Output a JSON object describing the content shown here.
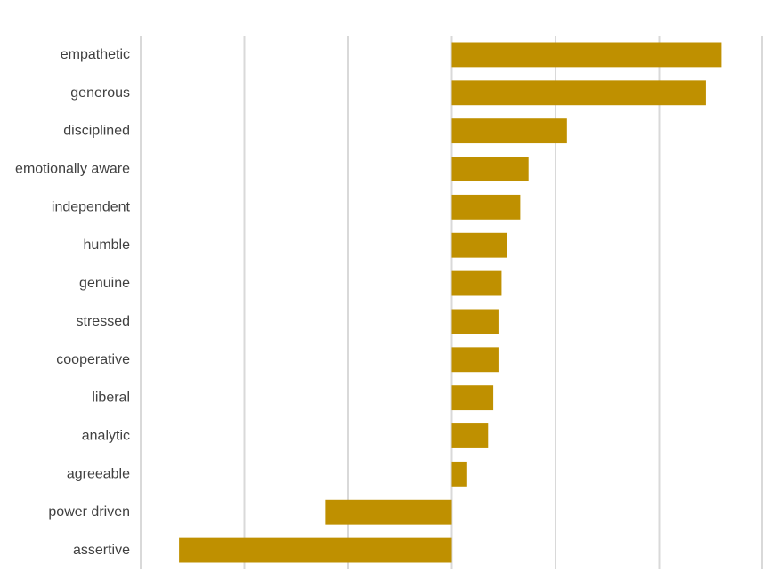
{
  "chart_data": {
    "type": "bar",
    "orientation": "horizontal",
    "categories": [
      "empathetic",
      "generous",
      "disciplined",
      "emotionally aware",
      "independent",
      "humble",
      "genuine",
      "stressed",
      "cooperative",
      "liberal",
      "analytic",
      "agreeable",
      "power driven",
      "assertive"
    ],
    "values": [
      2.6,
      2.45,
      1.11,
      0.74,
      0.66,
      0.53,
      0.48,
      0.45,
      0.45,
      0.4,
      0.35,
      0.14,
      -1.22,
      -2.63
    ],
    "xlim": [
      -3,
      3
    ],
    "grid": "vertical",
    "legend": "none",
    "bar_color": "#BF9000",
    "grid_color": "#D9D9D9"
  }
}
